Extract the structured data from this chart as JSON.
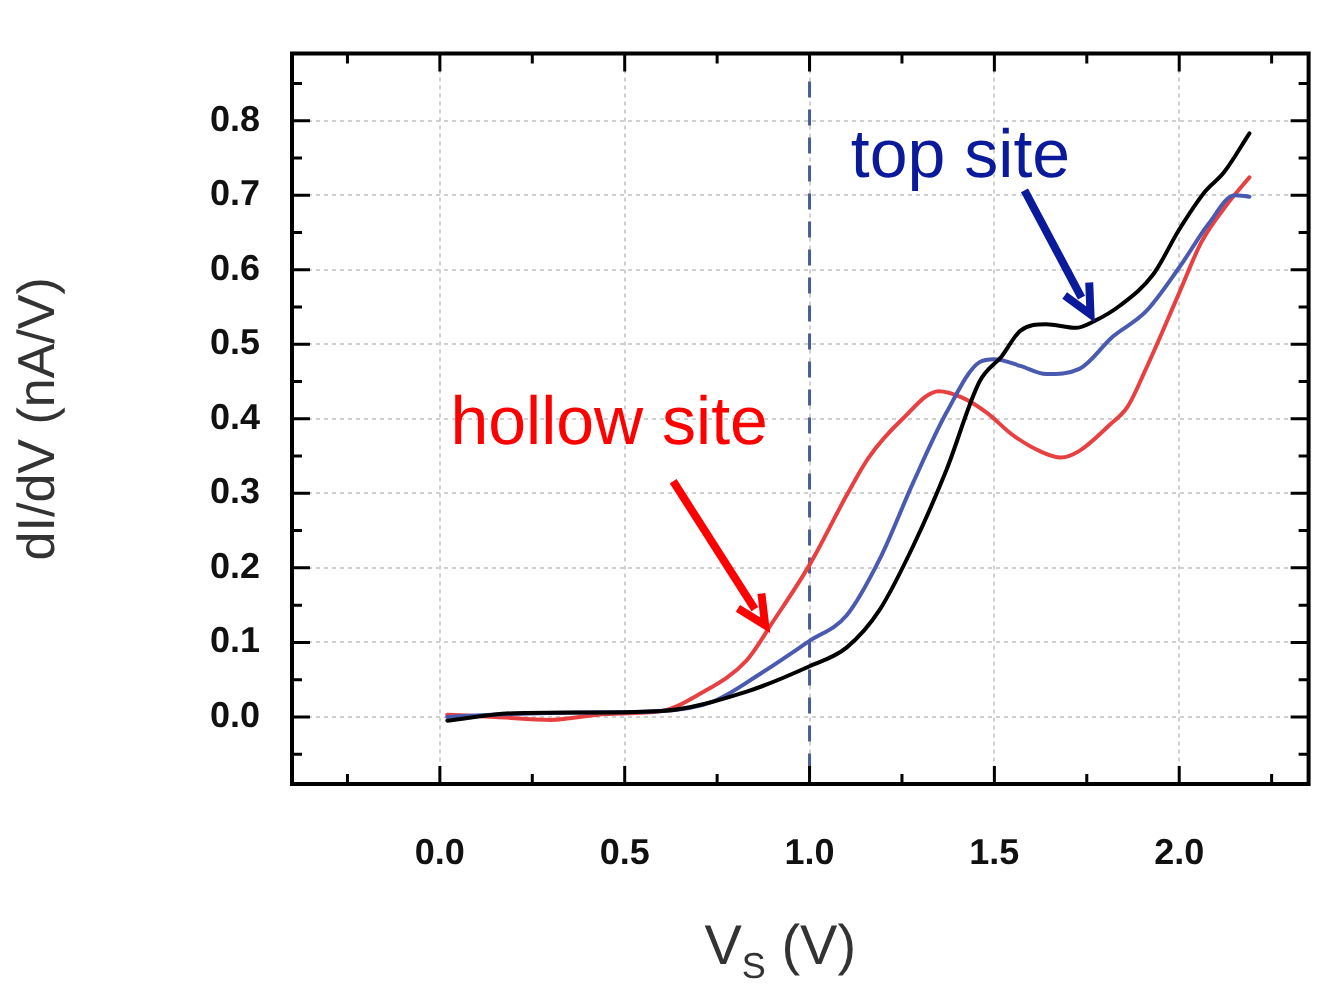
{
  "chart_data": {
    "type": "line",
    "xlabel": "V$_{S}$ (V)",
    "ylabel": "dI/dV (nA/V)",
    "xlim": [
      -0.4,
      2.35
    ],
    "ylim": [
      -0.09,
      0.89
    ],
    "xticks": [
      {
        "value": -0.25,
        "label": null
      },
      {
        "value": 0,
        "label": "0.0"
      },
      {
        "value": 0.25,
        "label": null
      },
      {
        "value": 0.5,
        "label": "0.5"
      },
      {
        "value": 0.75,
        "label": null
      },
      {
        "value": 1,
        "label": "1.0"
      },
      {
        "value": 1.25,
        "label": null
      },
      {
        "value": 1.5,
        "label": "1.5"
      },
      {
        "value": 1.75,
        "label": null
      },
      {
        "value": 2,
        "label": "2.0"
      },
      {
        "value": 2.25,
        "label": null
      }
    ],
    "yticks": [
      {
        "value": -0.05,
        "label": null
      },
      {
        "value": 0,
        "label": "0.0"
      },
      {
        "value": 0.05,
        "label": null
      },
      {
        "value": 0.1,
        "label": "0.1"
      },
      {
        "value": 0.15,
        "label": null
      },
      {
        "value": 0.2,
        "label": "0.2"
      },
      {
        "value": 0.25,
        "label": null
      },
      {
        "value": 0.3,
        "label": "0.3"
      },
      {
        "value": 0.35,
        "label": null
      },
      {
        "value": 0.4,
        "label": "0.4"
      },
      {
        "value": 0.45,
        "label": null
      },
      {
        "value": 0.5,
        "label": "0.5"
      },
      {
        "value": 0.55,
        "label": null
      },
      {
        "value": 0.6,
        "label": "0.6"
      },
      {
        "value": 0.65,
        "label": null
      },
      {
        "value": 0.7,
        "label": "0.7"
      },
      {
        "value": 0.75,
        "label": null
      },
      {
        "value": 0.8,
        "label": "0.8"
      },
      {
        "value": 0.85,
        "label": null
      }
    ],
    "grid": true,
    "legend": false,
    "marker": "none",
    "line_style": "solid",
    "series": [
      {
        "color": "#000000",
        "x": [
          0.02,
          0.2,
          0.4,
          0.6,
          0.83,
          1.0,
          1.1,
          1.19,
          1.28,
          1.37,
          1.46,
          1.52,
          1.57,
          1.64,
          1.72,
          1.77,
          1.84,
          1.93,
          2.0,
          2.07,
          2.12,
          2.19
        ],
        "values": [
          -0.005,
          0.005,
          0.006,
          0.008,
          0.034,
          0.068,
          0.093,
          0.144,
          0.229,
          0.331,
          0.45,
          0.484,
          0.518,
          0.527,
          0.522,
          0.531,
          0.552,
          0.594,
          0.654,
          0.705,
          0.73,
          0.783
        ]
      },
      {
        "color": "#4a5ab0",
        "x": [
          0.02,
          0.2,
          0.4,
          0.6,
          0.74,
          0.87,
          1.0,
          1.1,
          1.19,
          1.28,
          1.37,
          1.46,
          1.5,
          1.57,
          1.64,
          1.73,
          1.82,
          1.91,
          2.0,
          2.08,
          2.15,
          2.19
        ],
        "values": [
          0.0,
          0.004,
          0.006,
          0.008,
          0.021,
          0.059,
          0.102,
          0.136,
          0.212,
          0.314,
          0.408,
          0.476,
          0.48,
          0.471,
          0.46,
          0.467,
          0.51,
          0.544,
          0.603,
          0.662,
          0.7,
          0.698
        ]
      },
      {
        "color": "#e84040",
        "x": [
          0.02,
          0.15,
          0.3,
          0.45,
          0.6,
          0.7,
          0.83,
          0.9,
          1.0,
          1.1,
          1.16,
          1.25,
          1.35,
          1.41,
          1.48,
          1.55,
          1.63,
          1.68,
          1.73,
          1.81,
          1.86,
          1.91,
          2.0,
          2.06,
          2.13,
          2.19
        ],
        "values": [
          0.003,
          0.0,
          -0.004,
          0.004,
          0.008,
          0.03,
          0.076,
          0.127,
          0.204,
          0.297,
          0.348,
          0.399,
          0.437,
          0.429,
          0.408,
          0.378,
          0.355,
          0.348,
          0.357,
          0.391,
          0.416,
          0.467,
          0.569,
          0.637,
          0.688,
          0.724
        ]
      }
    ],
    "ref_lines": [
      {
        "axis": "x",
        "value": 1.0,
        "color": "#4a5a9a",
        "line_style": "dashed"
      }
    ],
    "annotations": [
      {
        "text": "top site",
        "x": 1.76,
        "y": 0.54
      },
      {
        "text": "hollow site",
        "x": 0.88,
        "y": 0.123
      }
    ]
  }
}
